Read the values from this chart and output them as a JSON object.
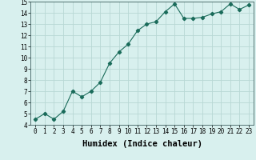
{
  "x": [
    0,
    1,
    2,
    3,
    4,
    5,
    6,
    7,
    8,
    9,
    10,
    11,
    12,
    13,
    14,
    15,
    16,
    17,
    18,
    19,
    20,
    21,
    22,
    23
  ],
  "y": [
    4.5,
    5.0,
    4.5,
    5.2,
    7.0,
    6.5,
    7.0,
    7.8,
    9.5,
    10.5,
    11.2,
    12.4,
    13.0,
    13.2,
    14.1,
    14.8,
    13.5,
    13.5,
    13.6,
    13.9,
    14.1,
    14.8,
    14.3,
    14.7
  ],
  "line_color": "#1a6b5a",
  "marker": "D",
  "marker_size": 2.2,
  "xlabel": "Humidex (Indice chaleur)",
  "xlim": [
    -0.5,
    23.5
  ],
  "ylim": [
    4,
    15
  ],
  "yticks": [
    4,
    5,
    6,
    7,
    8,
    9,
    10,
    11,
    12,
    13,
    14,
    15
  ],
  "xticks": [
    0,
    1,
    2,
    3,
    4,
    5,
    6,
    7,
    8,
    9,
    10,
    11,
    12,
    13,
    14,
    15,
    16,
    17,
    18,
    19,
    20,
    21,
    22,
    23
  ],
  "bg_color": "#d8f0ee",
  "grid_color": "#b8d8d4",
  "tick_label_fontsize": 5.5,
  "xlabel_fontsize": 7.5,
  "xlabel_fontweight": "bold"
}
